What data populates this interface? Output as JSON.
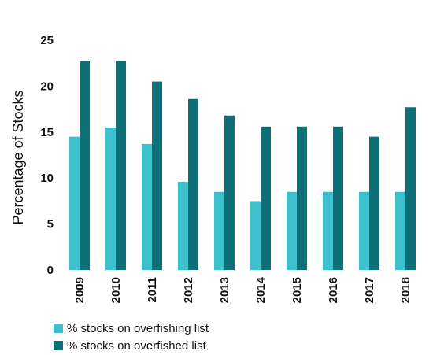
{
  "chart_data": {
    "type": "bar",
    "title": "",
    "xlabel": "",
    "ylabel": "Percentage of Stocks",
    "ylim": [
      0,
      25
    ],
    "yticks": [
      "0",
      "5",
      "10",
      "15",
      "20",
      "25"
    ],
    "grid": false,
    "legend_position": "bottom-left",
    "categories": [
      "2009",
      "2010",
      "2011",
      "2012",
      "2013",
      "2014",
      "2015",
      "2016",
      "2017",
      "2018"
    ],
    "series": [
      {
        "name": "% stocks on overfishing list",
        "color": "#3ec1cc",
        "values": [
          14.5,
          15.5,
          13.7,
          9.6,
          8.5,
          7.5,
          8.5,
          8.5,
          8.5,
          8.5
        ]
      },
      {
        "name": "% stocks on overfished list",
        "color": "#0e7077",
        "values": [
          22.7,
          22.7,
          20.5,
          18.6,
          16.8,
          15.6,
          15.6,
          15.6,
          14.5,
          17.7
        ]
      }
    ]
  }
}
